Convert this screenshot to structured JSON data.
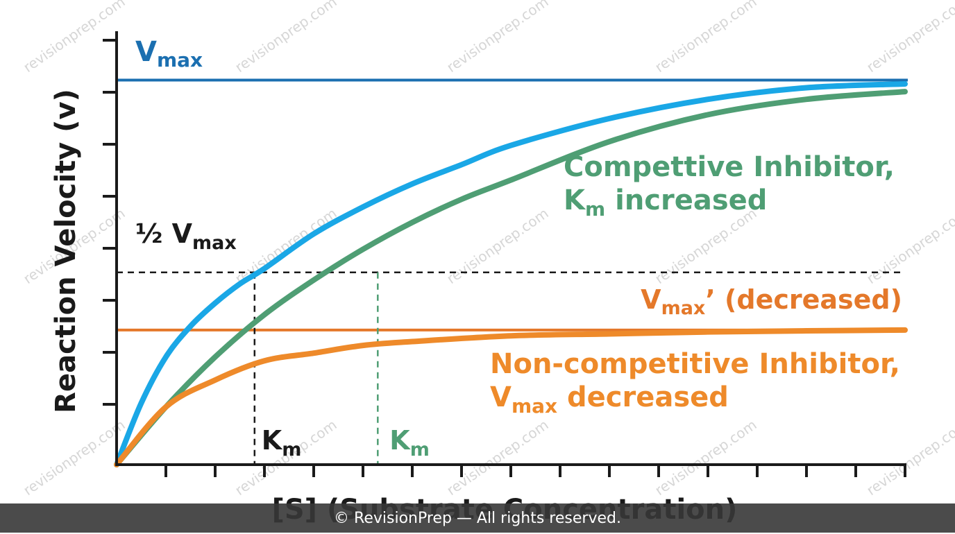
{
  "colors": {
    "vmax": "#1b6fb0",
    "normal": "#1aa7e6",
    "competitive": "#4f9e74",
    "noncompetitive": "#ee8a2a",
    "vmax_prime": "#e4782a",
    "axis": "#1a1a1a"
  },
  "watermark": "revisionprep.com",
  "footer": "© RevisionPrep — All rights reserved.",
  "chart_data": {
    "type": "line",
    "xlabel": "[S] (Substrate Concentration)",
    "ylabel": "Reaction Velocity (v)",
    "x_ticks_labeled": false,
    "y_ticks_labeled": false,
    "xlim": [
      0,
      16
    ],
    "ylim": [
      0,
      1.1
    ],
    "grid": false,
    "vmax_line": {
      "value": 1.0,
      "label_main": "V",
      "label_sub": "max"
    },
    "vmax_prime_line": {
      "value": 0.35,
      "label_main": "V",
      "label_sub": "max",
      "label_suffix": "’ (decreased)"
    },
    "half_vmax_line": {
      "value": 0.5,
      "label_prefix": "½ V",
      "label_sub": "max"
    },
    "km_markers": [
      {
        "x": 2.8,
        "color": "axis",
        "label_main": "K",
        "label_sub": "m"
      },
      {
        "x": 5.3,
        "color": "competitive",
        "label_main": "K",
        "label_sub": "m"
      }
    ],
    "series": [
      {
        "key": "normal",
        "color": "normal",
        "x": [
          0,
          0.5,
          1,
          1.5,
          2,
          2.5,
          3,
          4,
          5,
          6,
          7,
          8,
          10,
          12,
          14,
          16
        ],
        "y": [
          0,
          0.16,
          0.28,
          0.36,
          0.42,
          0.47,
          0.51,
          0.6,
          0.67,
          0.73,
          0.78,
          0.83,
          0.9,
          0.95,
          0.98,
          0.99
        ]
      },
      {
        "key": "competitive",
        "color": "competitive",
        "x": [
          0,
          1,
          2,
          3,
          4,
          5,
          6,
          7,
          8,
          10,
          12,
          14,
          16
        ],
        "y": [
          0,
          0.15,
          0.28,
          0.39,
          0.48,
          0.56,
          0.63,
          0.69,
          0.74,
          0.84,
          0.91,
          0.95,
          0.97
        ],
        "label_line1": "Compettive Inhibitor,",
        "label_line2_main": "K",
        "label_line2_sub": "m",
        "label_line2_rest": " increased"
      },
      {
        "key": "noncompetitive",
        "color": "noncompetitive",
        "x": [
          0,
          1,
          2,
          3,
          4,
          5,
          6,
          8,
          10,
          12,
          14,
          16
        ],
        "y": [
          0,
          0.15,
          0.22,
          0.27,
          0.29,
          0.31,
          0.32,
          0.335,
          0.34,
          0.345,
          0.348,
          0.35
        ],
        "label_line1": "Non-competitive Inhibitor,",
        "label_line2_main": "V",
        "label_line2_sub": "max",
        "label_line2_rest": " decreased"
      }
    ]
  }
}
